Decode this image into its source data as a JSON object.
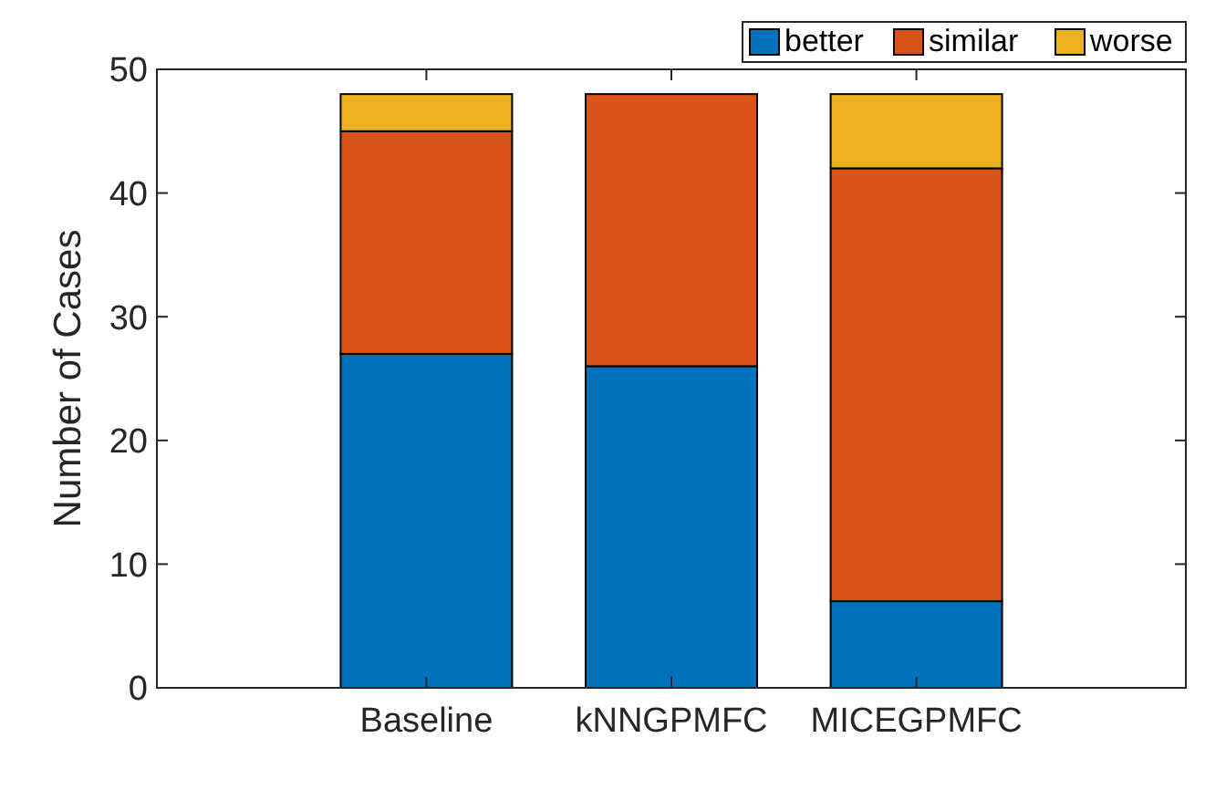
{
  "chart_data": {
    "type": "bar",
    "ylabel": "Number of Cases",
    "categories": [
      "Baseline",
      "kNNGPMFC",
      "MICEGPMFC"
    ],
    "stacked": true,
    "legend": "top right",
    "ylim": [
      0,
      50
    ],
    "yticks": [
      0,
      10,
      20,
      30,
      40,
      50
    ],
    "grid": false,
    "series": [
      {
        "name": "better",
        "color": "#0072bd",
        "values": [
          27,
          26,
          7
        ]
      },
      {
        "name": "similar",
        "color": "#d95319",
        "values": [
          18,
          22,
          35
        ]
      },
      {
        "name": "worse",
        "color": "#edb120",
        "values": [
          3,
          0,
          6
        ]
      }
    ]
  }
}
